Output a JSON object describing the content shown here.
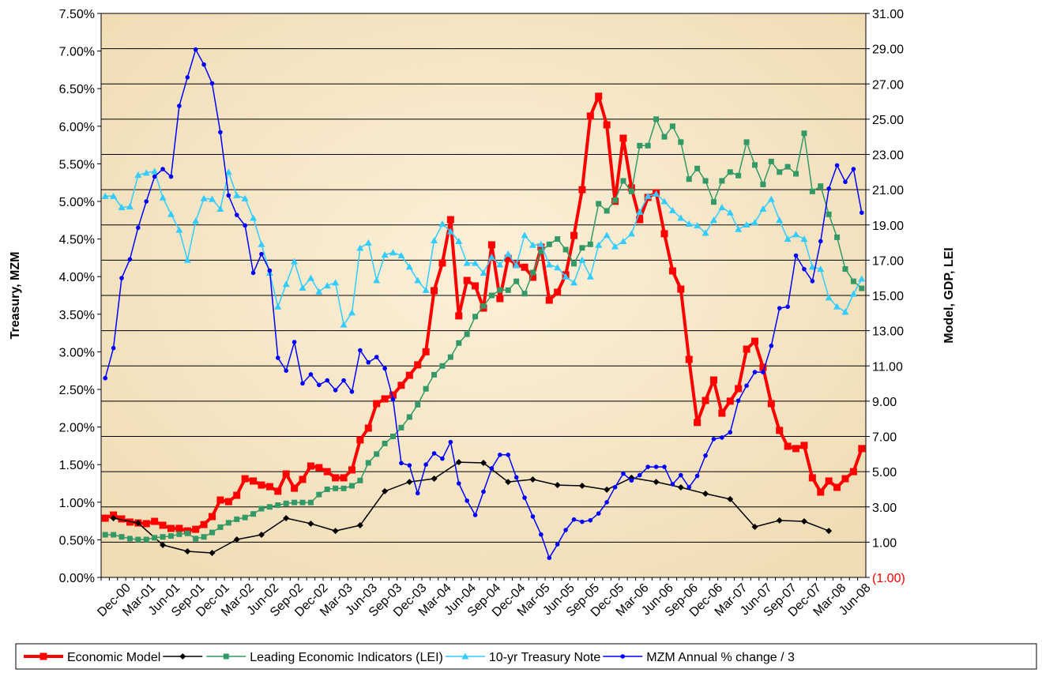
{
  "chart_data": {
    "type": "line",
    "y_label": "Treasury, MZM",
    "y2_label": "Model, GDP, LEI",
    "categories": [
      null,
      null,
      "Dec-00",
      null,
      null,
      "Mar-01",
      null,
      null,
      "Jun-01",
      null,
      null,
      "Sep-01",
      null,
      null,
      "Dec-01",
      null,
      null,
      "Mar-02",
      null,
      null,
      "Jun-02",
      null,
      null,
      "Sep-02",
      null,
      null,
      "Dec-02",
      null,
      null,
      "Mar-03",
      null,
      null,
      "Jun-03",
      null,
      null,
      "Sep-03",
      null,
      null,
      "Dec-03",
      null,
      null,
      "Mar-04",
      null,
      null,
      "Jun-04",
      null,
      null,
      "Sep-04",
      null,
      null,
      "Dec-04",
      null,
      null,
      "Mar-05",
      null,
      null,
      "Jun-05",
      null,
      null,
      "Sep-05",
      null,
      null,
      "Dec-05",
      null,
      null,
      "Mar-06",
      null,
      null,
      "Jun-06",
      null,
      null,
      "Sep-06",
      null,
      null,
      "Dec-06",
      null,
      null,
      "Mar-07",
      null,
      null,
      "Jun-07",
      null,
      null,
      "Sep-07",
      null,
      null,
      "Dec-07",
      null,
      null,
      "Mar-08",
      null,
      null,
      "Jun-08"
    ],
    "series": [
      {
        "name": "Economic Model",
        "color": "#ff0000",
        "axis": "y2",
        "marker": "square",
        "width": 4,
        "values": [
          2.36,
          2.54,
          2.32,
          2.14,
          2.09,
          2.05,
          2.18,
          1.96,
          1.78,
          1.78,
          1.64,
          1.73,
          2.0,
          2.45,
          3.39,
          3.3,
          3.66,
          4.6,
          4.47,
          4.24,
          4.15,
          3.89,
          4.87,
          4.06,
          4.56,
          5.32,
          5.23,
          5.0,
          4.65,
          4.65,
          5.1,
          6.8,
          7.47,
          8.86,
          9.13,
          9.35,
          9.9,
          10.47,
          11.06,
          11.8,
          15.27,
          16.84,
          19.3,
          13.84,
          15.85,
          15.54,
          14.28,
          17.87,
          14.82,
          17.1,
          16.75,
          16.6,
          16.03,
          17.74,
          14.73,
          15.18,
          16.17,
          18.4,
          21.0,
          25.18,
          26.3,
          24.68,
          20.34,
          23.92,
          21.1,
          19.3,
          20.56,
          20.83,
          18.5,
          16.39,
          15.36,
          11.37,
          7.79,
          9.04,
          10.2,
          8.32,
          9.0,
          9.71,
          11.95,
          12.4,
          10.92,
          8.86,
          7.34,
          6.44,
          6.31,
          6.49,
          4.65,
          3.84,
          4.47,
          4.11,
          4.6,
          5.0,
          6.31
        ]
      },
      {
        "name": null,
        "color": "#000000",
        "axis": "y2",
        "marker": "diamond",
        "width": 1.5,
        "connect_gaps": true,
        "values": [
          null,
          2.36,
          null,
          null,
          2.09,
          null,
          null,
          0.84,
          null,
          null,
          0.48,
          null,
          null,
          0.39,
          null,
          null,
          1.15,
          null,
          null,
          1.42,
          null,
          null,
          2.36,
          null,
          null,
          2.05,
          null,
          null,
          1.64,
          null,
          null,
          1.96,
          null,
          null,
          3.89,
          null,
          null,
          4.42,
          null,
          null,
          4.6,
          null,
          null,
          5.54,
          null,
          null,
          5.5,
          null,
          null,
          4.42,
          null,
          null,
          4.56,
          null,
          null,
          4.24,
          null,
          null,
          4.2,
          null,
          null,
          3.98,
          null,
          null,
          4.65,
          null,
          null,
          4.42,
          null,
          null,
          4.11,
          null,
          null,
          3.75,
          null,
          null,
          3.44,
          null,
          null,
          1.87,
          null,
          null,
          2.23,
          null,
          null,
          2.18,
          null,
          null,
          1.64,
          null,
          null,
          null,
          null
        ]
      },
      {
        "name": "Leading Economic Indicators (LEI)",
        "color": "#339966",
        "axis": "y2",
        "marker": "square",
        "width": 1.5,
        "values": [
          1.42,
          1.42,
          1.3,
          1.2,
          1.15,
          1.15,
          1.25,
          1.3,
          1.35,
          1.45,
          1.5,
          1.2,
          1.3,
          1.55,
          1.85,
          2.1,
          2.3,
          2.4,
          2.6,
          2.9,
          3.0,
          3.1,
          3.2,
          3.25,
          3.25,
          3.25,
          3.7,
          4.0,
          4.05,
          4.05,
          4.2,
          4.5,
          5.5,
          6.0,
          6.6,
          7.0,
          7.5,
          8.1,
          8.8,
          9.7,
          10.5,
          11.0,
          11.5,
          12.3,
          12.8,
          13.8,
          14.4,
          15.0,
          15.3,
          15.3,
          15.8,
          15.1,
          16.3,
          17.5,
          17.9,
          18.2,
          17.6,
          16.8,
          17.7,
          17.9,
          20.2,
          19.8,
          20.4,
          21.5,
          20.9,
          23.5,
          23.5,
          25.0,
          24.0,
          24.6,
          23.7,
          21.6,
          22.2,
          21.5,
          20.3,
          21.5,
          22.0,
          21.8,
          23.7,
          22.4,
          21.3,
          22.6,
          22.0,
          22.3,
          21.9,
          24.2,
          20.9,
          21.2,
          19.6,
          18.3,
          16.5,
          15.8,
          15.4
        ]
      },
      {
        "name": "10-yr Treasury Note",
        "color": "#33ccff",
        "axis": "y",
        "marker": "triangle",
        "width": 1.5,
        "values": [
          5.07,
          5.07,
          4.92,
          4.93,
          5.35,
          5.38,
          5.4,
          5.05,
          4.83,
          4.62,
          4.22,
          4.74,
          5.04,
          5.03,
          4.9,
          5.39,
          5.08,
          5.04,
          4.78,
          4.43,
          4.05,
          3.6,
          3.9,
          4.2,
          3.85,
          3.98,
          3.8,
          3.88,
          3.92,
          3.36,
          3.52,
          4.38,
          4.45,
          3.95,
          4.29,
          4.32,
          4.28,
          4.13,
          3.95,
          3.82,
          4.48,
          4.7,
          4.6,
          4.47,
          4.18,
          4.18,
          4.05,
          4.26,
          4.16,
          4.3,
          4.15,
          4.55,
          4.42,
          4.43,
          4.16,
          4.12,
          4.0,
          3.92,
          4.22,
          4.0,
          4.42,
          4.55,
          4.4,
          4.47,
          4.57,
          4.86,
          5.07,
          5.1,
          5.0,
          4.88,
          4.78,
          4.7,
          4.68,
          4.58,
          4.75,
          4.92,
          4.85,
          4.63,
          4.69,
          4.72,
          4.9,
          5.03,
          4.75,
          4.5,
          4.56,
          4.5,
          4.13,
          4.1,
          3.72,
          3.6,
          3.53,
          3.77,
          3.97
        ]
      },
      {
        "name": "MZM Annual % change / 3",
        "color": "#0000ff",
        "axis": "y",
        "marker": "circle",
        "width": 1.5,
        "values": [
          2.65,
          3.05,
          3.98,
          4.23,
          4.65,
          5.0,
          5.33,
          5.43,
          5.33,
          6.27,
          6.65,
          7.02,
          6.82,
          6.57,
          5.92,
          5.08,
          4.82,
          4.68,
          4.05,
          4.3,
          4.08,
          2.92,
          2.75,
          3.13,
          2.58,
          2.7,
          2.56,
          2.62,
          2.49,
          2.62,
          2.47,
          3.02,
          2.86,
          2.93,
          2.78,
          2.37,
          1.52,
          1.49,
          1.12,
          1.5,
          1.65,
          1.58,
          1.8,
          1.25,
          1.02,
          0.83,
          1.14,
          1.45,
          1.63,
          1.63,
          1.33,
          1.06,
          0.81,
          0.57,
          0.26,
          0.44,
          0.63,
          0.77,
          0.74,
          0.76,
          0.85,
          1.0,
          1.2,
          1.38,
          1.29,
          1.36,
          1.47,
          1.47,
          1.47,
          1.24,
          1.36,
          1.2,
          1.35,
          1.62,
          1.84,
          1.86,
          1.93,
          2.35,
          2.55,
          2.73,
          2.73,
          3.08,
          3.58,
          3.6,
          4.28,
          4.1,
          3.94,
          4.47,
          5.17,
          5.48,
          5.26,
          5.43,
          4.85
        ]
      }
    ],
    "ylim": [
      0,
      7.5
    ],
    "yticks": [
      {
        "value": 0,
        "label": "0.00%"
      },
      {
        "value": 0.5,
        "label": "0.50%"
      },
      {
        "value": 1,
        "label": "1.00%"
      },
      {
        "value": 1.5,
        "label": "1.50%"
      },
      {
        "value": 2,
        "label": "2.00%"
      },
      {
        "value": 2.5,
        "label": "2.50%"
      },
      {
        "value": 3,
        "label": "3.00%"
      },
      {
        "value": 3.5,
        "label": "3.50%"
      },
      {
        "value": 4,
        "label": "4.00%"
      },
      {
        "value": 4.5,
        "label": "4.50%"
      },
      {
        "value": 5,
        "label": "5.00%"
      },
      {
        "value": 5.5,
        "label": "5.50%"
      },
      {
        "value": 6,
        "label": "6.00%"
      },
      {
        "value": 6.5,
        "label": "6.50%"
      },
      {
        "value": 7,
        "label": "7.00%"
      },
      {
        "value": 7.5,
        "label": "7.50%"
      }
    ],
    "y2lim": [
      -1,
      31
    ],
    "y2ticks": [
      {
        "value": -1,
        "label": "(1.00)"
      },
      {
        "value": 1,
        "label": "1.00"
      },
      {
        "value": 3,
        "label": "3.00"
      },
      {
        "value": 5,
        "label": "5.00"
      },
      {
        "value": 7,
        "label": "7.00"
      },
      {
        "value": 9,
        "label": "9.00"
      },
      {
        "value": 11,
        "label": "11.00"
      },
      {
        "value": 13,
        "label": "13.00"
      },
      {
        "value": 15,
        "label": "15.00"
      },
      {
        "value": 17,
        "label": "17.00"
      },
      {
        "value": 19,
        "label": "19.00"
      },
      {
        "value": 21,
        "label": "21.00"
      },
      {
        "value": 23,
        "label": "23.00"
      },
      {
        "value": 25,
        "label": "25.00"
      },
      {
        "value": 27,
        "label": "27.00"
      },
      {
        "value": 29,
        "label": "29.00"
      },
      {
        "value": 31,
        "label": "31.00"
      }
    ],
    "grid": "y2",
    "negative_tick_color": "#ff0000",
    "legend": "bottom"
  }
}
